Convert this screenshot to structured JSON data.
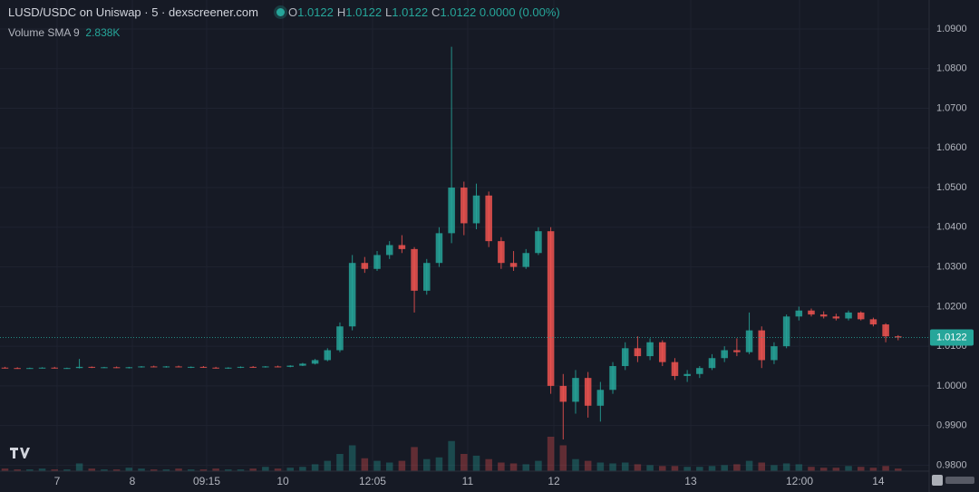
{
  "chart_data": {
    "type": "candlestick",
    "title": "LUSD/USDC on Uniswap · 5 · dexscreener.com",
    "ohlc_legend": {
      "letters": [
        "O",
        "H",
        "L",
        "C"
      ],
      "values": [
        1.0122,
        1.0122,
        1.0122,
        1.0122
      ],
      "change": "0.0000 (0.00%)"
    },
    "volume_legend": {
      "label": "Volume SMA 9",
      "value": "2.838K"
    },
    "last_price": 1.0122,
    "up_color": "#26a69a",
    "down_color": "#ef5350",
    "grid": true,
    "ylim": [
      0.9785,
      1.0973
    ],
    "yticks": [
      {
        "value": 0.98,
        "label": "0.9800"
      },
      {
        "value": 0.99,
        "label": "0.9900"
      },
      {
        "value": 1.0,
        "label": "1.0000"
      },
      {
        "value": 1.01,
        "label": "1.0100"
      },
      {
        "value": 1.02,
        "label": "1.0200"
      },
      {
        "value": 1.03,
        "label": "1.0300"
      },
      {
        "value": 1.04,
        "label": "1.0400"
      },
      {
        "value": 1.05,
        "label": "1.0500"
      },
      {
        "value": 1.06,
        "label": "1.0600"
      },
      {
        "value": 1.07,
        "label": "1.0700"
      },
      {
        "value": 1.08,
        "label": "1.0800"
      },
      {
        "value": 1.09,
        "label": "1.0900"
      }
    ],
    "xlim": [
      -0.4,
      74.5
    ],
    "xticks": [
      {
        "value": 4.2,
        "label": "7"
      },
      {
        "value": 10.27,
        "label": "8"
      },
      {
        "value": 16.26,
        "label": "09:15"
      },
      {
        "value": 22.4,
        "label": "10"
      },
      {
        "value": 29.63,
        "label": "12:05"
      },
      {
        "value": 37.3,
        "label": "11"
      },
      {
        "value": 44.25,
        "label": "12"
      },
      {
        "value": 55.28,
        "label": "13"
      },
      {
        "value": 64.05,
        "label": "12:00"
      },
      {
        "value": 70.4,
        "label": "14"
      }
    ],
    "x": [
      0,
      1,
      2,
      3,
      4,
      5,
      6,
      7,
      8,
      9,
      10,
      11,
      12,
      13,
      14,
      15,
      16,
      17,
      18,
      19,
      20,
      21,
      22,
      23,
      24,
      25,
      26,
      27,
      28,
      29,
      30,
      31,
      32,
      33,
      34,
      35,
      36,
      37,
      38,
      39,
      40,
      41,
      42,
      43,
      44,
      45,
      46,
      47,
      48,
      49,
      50,
      51,
      52,
      53,
      54,
      55,
      56,
      57,
      58,
      59,
      60,
      61,
      62,
      63,
      64,
      65,
      66,
      67,
      68,
      69,
      70,
      71,
      72
    ],
    "open": [
      1.0046,
      1.0045,
      1.0044,
      1.0045,
      1.0046,
      1.0044,
      1.0045,
      1.0048,
      1.0046,
      1.0047,
      1.0046,
      1.0047,
      1.0049,
      1.0048,
      1.0049,
      1.0047,
      1.0048,
      1.0046,
      1.0045,
      1.0046,
      1.0048,
      1.0047,
      1.0049,
      1.0048,
      1.0051,
      1.0056,
      1.0065,
      1.009,
      1.015,
      1.031,
      1.0295,
      1.033,
      1.0355,
      1.0345,
      1.024,
      1.031,
      1.0385,
      1.05,
      1.041,
      1.048,
      1.0365,
      1.031,
      1.03,
      1.0335,
      1.039,
      1.0,
      0.996,
      1.002,
      0.995,
      0.999,
      1.005,
      1.0095,
      1.0075,
      1.011,
      1.006,
      1.0025,
      1.003,
      1.0045,
      1.007,
      1.009,
      1.0085,
      1.014,
      1.0065,
      1.01,
      1.0175,
      1.019,
      1.018,
      1.0175,
      1.017,
      1.0185,
      1.0168,
      1.0155,
      1.0125
    ],
    "high": [
      1.0048,
      1.0047,
      1.0046,
      1.0047,
      1.0048,
      1.0046,
      1.0068,
      1.0049,
      1.0048,
      1.0049,
      1.0048,
      1.005,
      1.0051,
      1.005,
      1.0051,
      1.0049,
      1.005,
      1.0048,
      1.0047,
      1.0049,
      1.005,
      1.005,
      1.0051,
      1.0052,
      1.0058,
      1.0068,
      1.0095,
      1.016,
      1.033,
      1.0325,
      1.034,
      1.0365,
      1.038,
      1.035,
      1.032,
      1.04,
      1.0855,
      1.0515,
      1.051,
      1.049,
      1.0375,
      1.034,
      1.0345,
      1.04,
      1.04,
      1.003,
      1.004,
      1.0035,
      1.001,
      1.006,
      1.011,
      1.0125,
      1.012,
      1.0115,
      1.007,
      1.004,
      1.005,
      1.008,
      1.01,
      1.012,
      1.0185,
      1.015,
      1.011,
      1.018,
      1.02,
      1.0195,
      1.0188,
      1.0182,
      1.019,
      1.0188,
      1.0172,
      1.0158,
      1.0128
    ],
    "low": [
      1.0044,
      1.0043,
      1.0043,
      1.0044,
      1.0044,
      1.0043,
      1.0044,
      1.0045,
      1.0045,
      1.0045,
      1.0044,
      1.0046,
      1.0047,
      1.0046,
      1.0047,
      1.0045,
      1.0046,
      1.0044,
      1.0043,
      1.0045,
      1.0046,
      1.0046,
      1.0047,
      1.0047,
      1.005,
      1.0054,
      1.0062,
      1.0085,
      1.014,
      1.0285,
      1.029,
      1.032,
      1.0335,
      1.0185,
      1.023,
      1.03,
      1.036,
      1.038,
      1.0395,
      1.035,
      1.0295,
      1.029,
      1.0295,
      1.033,
      0.998,
      0.9865,
      0.993,
      0.992,
      0.991,
      0.998,
      1.004,
      1.006,
      1.0065,
      1.005,
      1.0015,
      1.001,
      1.002,
      1.004,
      1.006,
      1.0075,
      1.008,
      1.0045,
      1.0055,
      1.0095,
      1.0165,
      1.0175,
      1.017,
      1.0165,
      1.0165,
      1.0165,
      1.015,
      1.011,
      1.0115
    ],
    "close": [
      1.0045,
      1.0044,
      1.0045,
      1.0046,
      1.0044,
      1.0045,
      1.0048,
      1.0046,
      1.0047,
      1.0046,
      1.0047,
      1.0049,
      1.0048,
      1.0049,
      1.0047,
      1.0048,
      1.0046,
      1.0045,
      1.0046,
      1.0048,
      1.0047,
      1.0049,
      1.0048,
      1.0051,
      1.0056,
      1.0065,
      1.009,
      1.015,
      1.031,
      1.0295,
      1.033,
      1.0355,
      1.0345,
      1.024,
      1.031,
      1.0385,
      1.05,
      1.041,
      1.048,
      1.0365,
      1.031,
      1.03,
      1.0335,
      1.039,
      1.0,
      0.996,
      1.002,
      0.995,
      0.999,
      1.005,
      1.0095,
      1.0075,
      1.011,
      1.006,
      1.0025,
      1.003,
      1.0045,
      1.007,
      1.009,
      1.0085,
      1.014,
      1.0065,
      1.01,
      1.0175,
      1.019,
      1.018,
      1.0175,
      1.017,
      1.0185,
      1.0168,
      1.0155,
      1.0125,
      1.0122
    ],
    "volume": [
      3,
      2,
      2,
      3,
      2,
      2,
      9,
      3,
      2,
      2,
      4,
      3,
      2,
      2,
      3,
      2,
      2,
      3,
      2,
      2,
      3,
      5,
      3,
      4,
      5,
      8,
      12,
      20,
      30,
      15,
      12,
      10,
      12,
      28,
      14,
      16,
      35,
      20,
      18,
      14,
      10,
      9,
      8,
      12,
      40,
      30,
      14,
      12,
      10,
      9,
      10,
      8,
      7,
      6,
      6,
      5,
      5,
      6,
      7,
      8,
      12,
      10,
      7,
      9,
      8,
      5,
      4,
      4,
      6,
      5,
      4,
      6,
      3
    ]
  }
}
